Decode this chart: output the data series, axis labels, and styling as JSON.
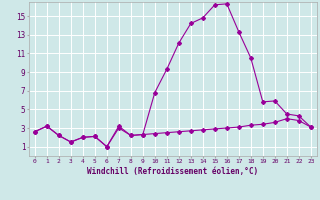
{
  "xlabel": "Windchill (Refroidissement éolien,°C)",
  "background_color": "#cfe8e8",
  "grid_color": "#ffffff",
  "line_color": "#990099",
  "x_values": [
    0,
    1,
    2,
    3,
    4,
    5,
    6,
    7,
    8,
    9,
    10,
    11,
    12,
    13,
    14,
    15,
    16,
    17,
    18,
    19,
    20,
    21,
    22,
    23
  ],
  "series1": [
    2.6,
    3.2,
    2.2,
    1.5,
    2.0,
    2.1,
    1.0,
    3.0,
    2.2,
    2.3,
    2.4,
    2.5,
    2.6,
    2.7,
    2.8,
    2.9,
    3.0,
    3.1,
    3.3,
    3.4,
    3.6,
    4.0,
    3.8,
    3.1
  ],
  "series2": [
    2.6,
    3.2,
    2.2,
    1.5,
    2.0,
    2.1,
    1.0,
    3.2,
    2.2,
    2.3,
    6.8,
    9.3,
    12.1,
    14.2,
    14.8,
    16.2,
    16.3,
    13.3,
    10.5,
    5.8,
    5.9,
    4.5,
    4.3,
    3.1
  ],
  "ylim": [
    0,
    16.5
  ],
  "yticks": [
    1,
    3,
    5,
    7,
    9,
    11,
    13,
    15
  ],
  "xtick_labels": [
    "0",
    "1",
    "2",
    "3",
    "4",
    "5",
    "6",
    "7",
    "8",
    "9",
    "10",
    "11",
    "12",
    "13",
    "14",
    "15",
    "16",
    "17",
    "18",
    "19",
    "20",
    "21",
    "22",
    "23"
  ],
  "tick_color": "#660066",
  "label_color": "#660066"
}
